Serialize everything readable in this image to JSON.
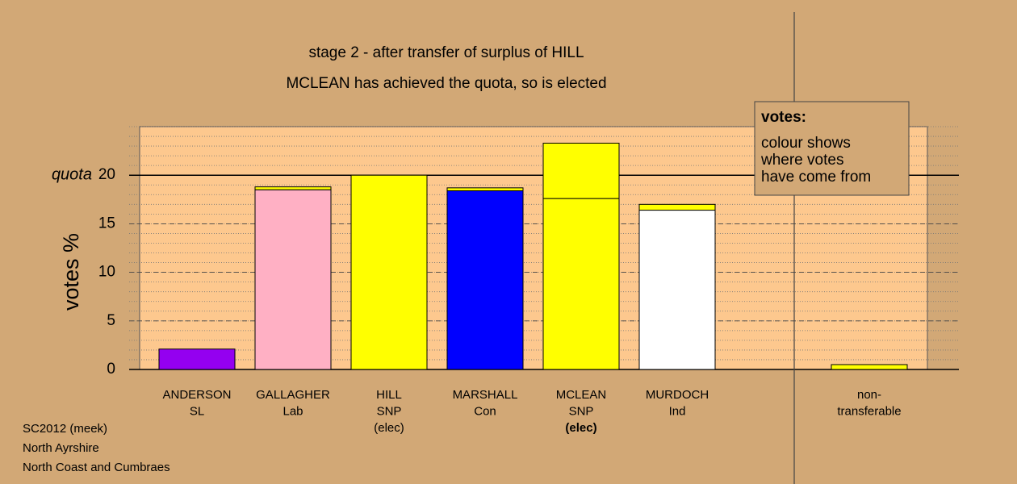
{
  "chart_data": {
    "type": "stacked_bar",
    "title": "stage 2 - after transfer of surplus of HILL",
    "subtitle": "MCLEAN has achieved the quota, so is elected",
    "ylabel": "votes %",
    "quota_label": "quota",
    "quota": 20,
    "categories": [
      [
        "ANDERSON",
        "SL"
      ],
      [
        "GALLAGHER",
        "Lab"
      ],
      [
        "HILL",
        "SNP",
        "(elec)"
      ],
      [
        "MARSHALL",
        "Con"
      ],
      [
        "MCLEAN",
        "SNP",
        "(elec)"
      ],
      [
        "MURDOCH",
        "Ind"
      ],
      null,
      [
        "non-",
        "transferable"
      ]
    ],
    "series": [
      {
        "colors": [
          "#9400f0",
          "#ffb0c4",
          "#ffff00",
          "#0000ff",
          "#ffff00",
          "#ffffff",
          null,
          null
        ],
        "values": [
          2.1,
          18.5,
          20,
          18.4,
          17.6,
          16.4,
          null,
          null
        ]
      },
      {
        "color": "#ffff00",
        "values": [
          null,
          0.3,
          null,
          0.3,
          5.7,
          0.6,
          null,
          0.5
        ]
      }
    ],
    "ylim": [
      0,
      25
    ],
    "yticks": [
      0,
      5,
      10,
      15,
      20
    ],
    "minor_step": 1,
    "grid": true,
    "legend_title": "votes:",
    "legend_text": [
      "colour shows",
      "where votes",
      "have come from"
    ],
    "footer": [
      "SC2012 (meek)",
      "North Ayrshire",
      "North Coast and Cumbraes"
    ]
  }
}
